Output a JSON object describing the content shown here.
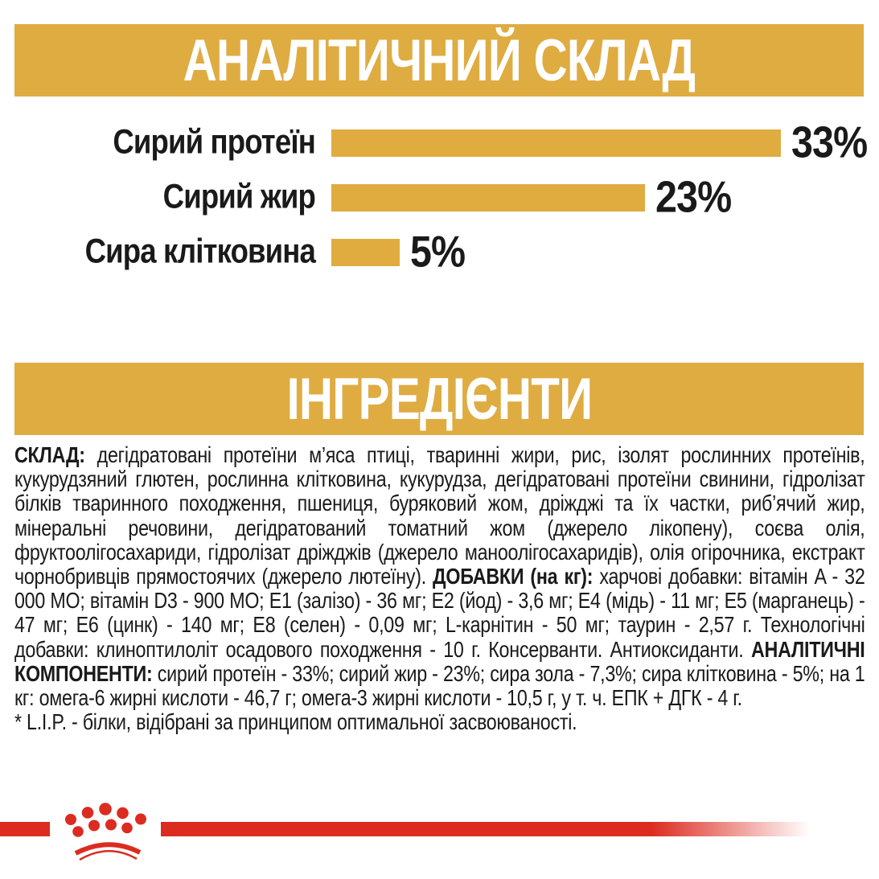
{
  "colors": {
    "gold": "#DFAC42",
    "red": "#DC2B20",
    "text": "#1A1A1A",
    "banner_text": "#FFFFFF"
  },
  "analytical_section": {
    "title": "АНАЛІТИЧНИЙ СКЛАД"
  },
  "chart_data": {
    "type": "bar",
    "orientation": "horizontal",
    "title": "АНАЛІТИЧНИЙ СКЛАД",
    "categories": [
      "Сирий протеїн",
      "Сирий жир",
      "Сира клітковина"
    ],
    "values": [
      33,
      23,
      5
    ],
    "value_labels": [
      "33%",
      "23%",
      "5%"
    ],
    "unit": "%",
    "xlim": [
      0,
      35
    ],
    "bar_color": "#E0AC40",
    "grid": false,
    "legend": false
  },
  "ingredients_section": {
    "title": "ІНГРЕДІЄНТИ",
    "composition_label": "СКЛАД:",
    "composition_text": " дегідратовані протеїни м’яса птиці, тваринні жири, рис, ізолят рослинних протеїнів, кукурудзяний глютен, рослинна клітковина, кукурудза, дегідратовані протеїни свинини, гідролізат білків тваринного походження, пшениця, буряковий жом, дріжджі та їх частки, риб’ячий жир, мінеральні речовини, дегідратований томатний жом (джерело лікопену), соєва олія, фруктоолігосахариди, гідролізат дріжджів (джерело маноолігосахаридів), олія огірочника, екстракт чорнобривців прямостоячих (джерело лютеїну). ",
    "additives_label": "ДОБАВКИ (на кг):",
    "additives_text": " харчові добавки: вітамін A - 32 000 МО; вітамін D3 - 900 МО; Е1 (залізо) - 36 мг; Е2 (йод) - 3,6 мг; Е4 (мідь) - 11 мг; Е5 (марганець) - 47 мг; Е6 (цинк) - 140 мг; Е8 (селен) - 0,09 мг; L-карнітин - 50 мг; таурин - 2,57 г. Технологічні добавки: клиноптилоліт осадового походження - 10 г. Консерванти. Антиоксиданти. ",
    "analytical_label": "АНАЛІТИЧНІ КОМПОНЕНТИ:",
    "analytical_text": " сирий протеїн - 33%; сирий жир - 23%; сира зола - 7,3%; сира клітковина - 5%; на 1 кг: омега-6 жирні кислоти - 46,7 г; омега-3 жирні кислоти - 10,5 г, у т. ч. ЕПК + ДГК - 4 г.",
    "lip_note": "* L.I.P. - білки, відібрані за принципом оптимальної засвоюваності."
  },
  "footer": {
    "logo": "royal-canin-crown"
  }
}
